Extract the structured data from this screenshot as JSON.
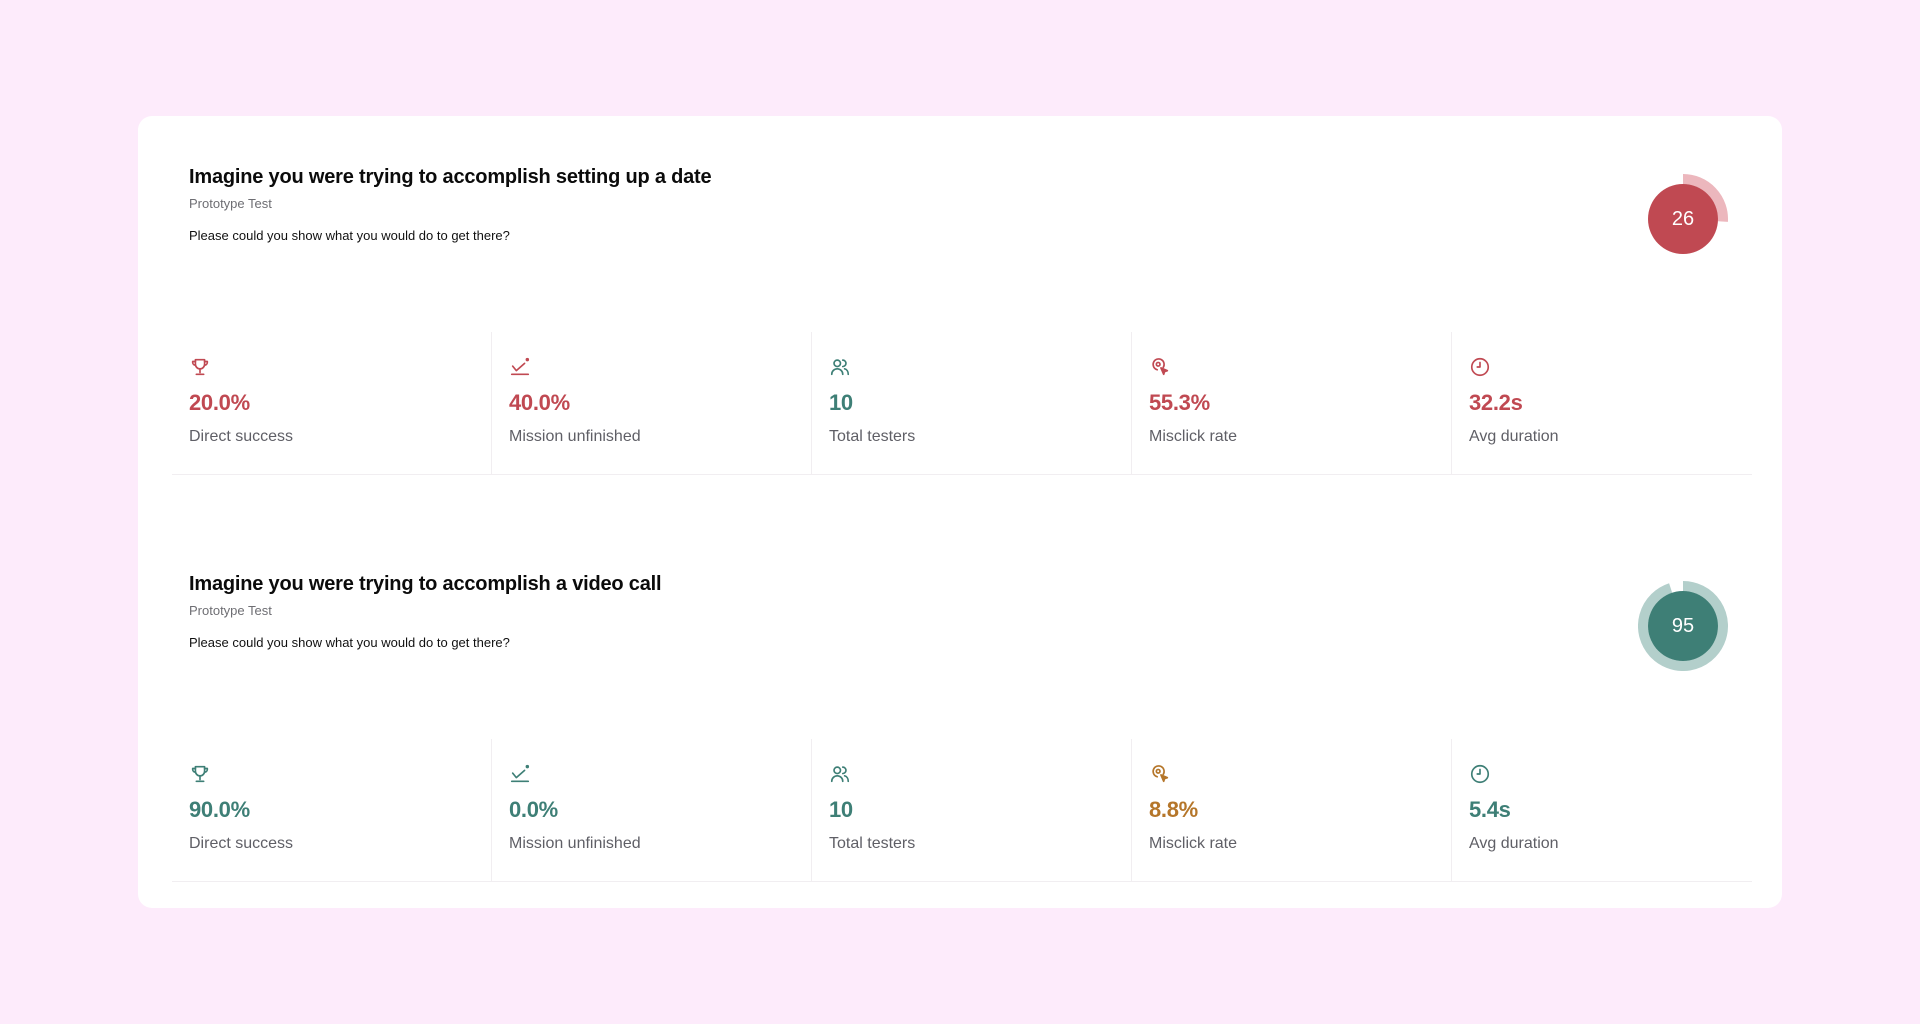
{
  "tasks": [
    {
      "title": "Imagine you were trying to accomplish setting up a date",
      "type": "Prototype Test",
      "question": "Please could you show what you would do to get there?",
      "score": 26,
      "score_color": "#c04952",
      "score_track_color": "#ecb7bd",
      "metrics": [
        {
          "icon": "trophy-icon",
          "value": "20.0%",
          "label": "Direct success",
          "color": "#c04952"
        },
        {
          "icon": "mission-unfinished-icon",
          "value": "40.0%",
          "label": "Mission unfinished",
          "color": "#c04952"
        },
        {
          "icon": "users-icon",
          "value": "10",
          "label": "Total testers",
          "color": "#3e7f76"
        },
        {
          "icon": "misclick-icon",
          "value": "55.3%",
          "label": "Misclick rate",
          "color": "#c04952"
        },
        {
          "icon": "clock-icon",
          "value": "32.2s",
          "label": "Avg duration",
          "color": "#c04952"
        }
      ]
    },
    {
      "title": "Imagine you were trying to accomplish a video call",
      "type": "Prototype Test",
      "question": "Please could you show what you would do to get there?",
      "score": 95,
      "score_color": "#3e7f76",
      "score_track_color": "#b3cfcb",
      "metrics": [
        {
          "icon": "trophy-icon",
          "value": "90.0%",
          "label": "Direct success",
          "color": "#3e7f76"
        },
        {
          "icon": "mission-unfinished-icon",
          "value": "0.0%",
          "label": "Mission unfinished",
          "color": "#3e7f76"
        },
        {
          "icon": "users-icon",
          "value": "10",
          "label": "Total testers",
          "color": "#3e7f76"
        },
        {
          "icon": "misclick-icon",
          "value": "8.8%",
          "label": "Misclick rate",
          "color": "#b5762a"
        },
        {
          "icon": "clock-icon",
          "value": "5.4s",
          "label": "Avg duration",
          "color": "#3e7f76"
        }
      ]
    }
  ]
}
